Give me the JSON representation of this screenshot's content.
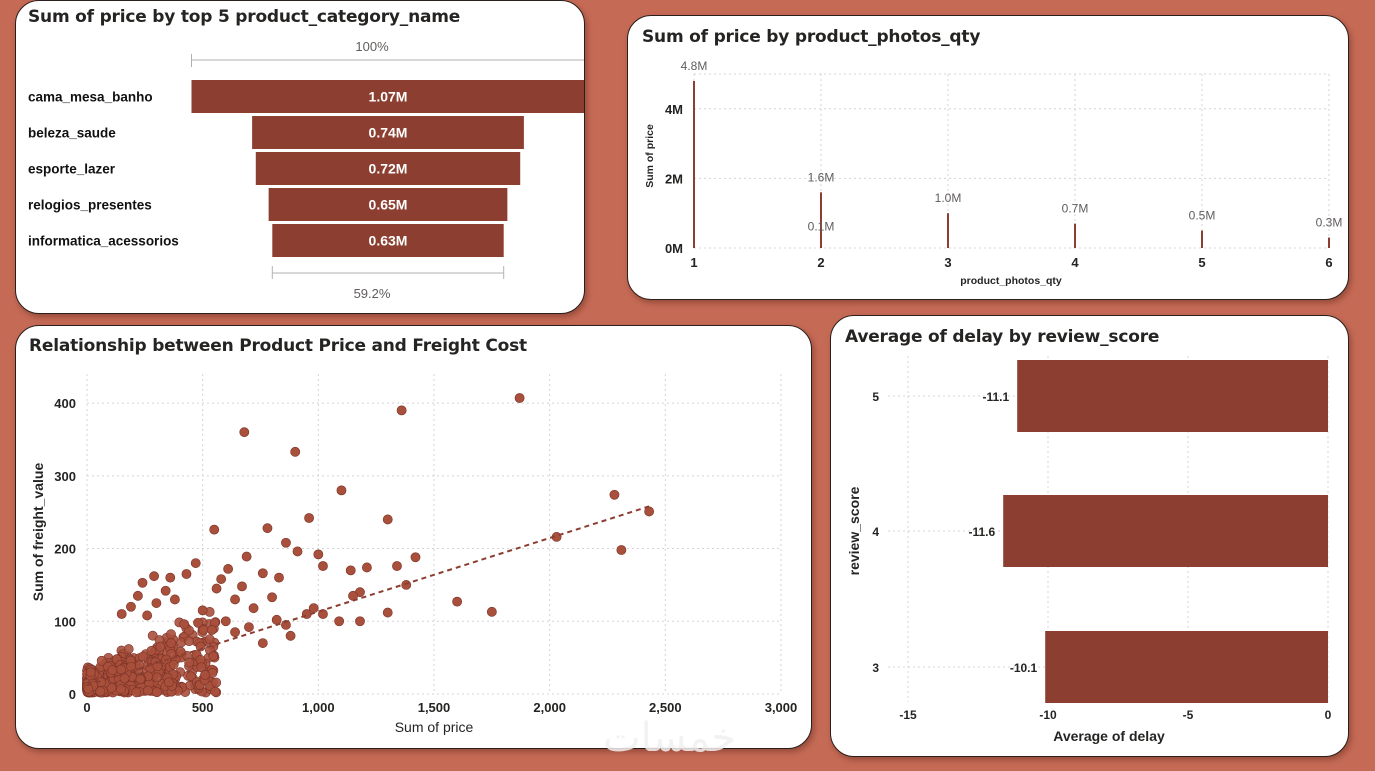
{
  "colors": {
    "bar": "#8c3e30",
    "grid": "#d4d4d4",
    "text": "#252423",
    "muted": "#605e5c"
  },
  "watermark": "خمسات",
  "chart_data": [
    {
      "id": "funnel",
      "type": "bar",
      "subtype": "funnel",
      "title": "Sum of price by top 5 product_category_name",
      "categories": [
        "cama_mesa_banho",
        "beleza_saude",
        "esporte_lazer",
        "relogios_presentes",
        "informatica_acessorios"
      ],
      "values": [
        1.07,
        0.74,
        0.72,
        0.65,
        0.63
      ],
      "value_labels": [
        "1.07M",
        "0.74M",
        "0.72M",
        "0.65M",
        "0.63M"
      ],
      "top_percent_label": "100%",
      "bottom_percent_label": "59.2%",
      "unit": "M"
    },
    {
      "id": "photos",
      "type": "bar",
      "subtype": "lollipop",
      "title": "Sum of price by product_photos_qty",
      "xlabel": "product_photos_qty",
      "ylabel": "Sum of price",
      "x": [
        1,
        2,
        2,
        3,
        4,
        5,
        6
      ],
      "x_ticks": [
        "1",
        "2",
        "3",
        "4",
        "5",
        "6"
      ],
      "values": [
        4.8,
        1.6,
        0.1,
        1.0,
        0.7,
        0.5,
        0.3
      ],
      "value_labels": [
        "4.8M",
        "1.6M",
        "0.1M",
        "1.0M",
        "0.7M",
        "0.5M",
        "0.3M"
      ],
      "y_ticks": [
        "0M",
        "2M",
        "4M"
      ],
      "ylim": [
        0,
        5
      ]
    },
    {
      "id": "scatter",
      "type": "scatter",
      "title": "Relationship between Product Price and Freight Cost",
      "xlabel": "Sum of price",
      "ylabel": "Sum of freight_value",
      "xlim": [
        0,
        3000
      ],
      "ylim": [
        0,
        440
      ],
      "x_ticks": [
        "0",
        "500",
        "1,000",
        "1,500",
        "2,000",
        "2,500",
        "3,000"
      ],
      "x_tick_values": [
        0,
        500,
        1000,
        1500,
        2000,
        2500,
        3000
      ],
      "y_ticks": [
        "0",
        "100",
        "200",
        "300",
        "400"
      ],
      "y_tick_values": [
        0,
        100,
        200,
        300,
        400
      ],
      "trendline": {
        "x": [
          0,
          2430
        ],
        "y": [
          12,
          258
        ]
      },
      "points": [
        [
          1870,
          407
        ],
        [
          1360,
          390
        ],
        [
          680,
          360
        ],
        [
          900,
          333
        ],
        [
          1100,
          280
        ],
        [
          2280,
          274
        ],
        [
          2430,
          251
        ],
        [
          1300,
          240
        ],
        [
          960,
          242
        ],
        [
          780,
          228
        ],
        [
          550,
          226
        ],
        [
          2030,
          216
        ],
        [
          2310,
          198
        ],
        [
          1420,
          188
        ],
        [
          860,
          208
        ],
        [
          1000,
          192
        ],
        [
          690,
          189
        ],
        [
          910,
          196
        ],
        [
          470,
          180
        ],
        [
          1020,
          176
        ],
        [
          1340,
          176
        ],
        [
          1210,
          174
        ],
        [
          610,
          172
        ],
        [
          760,
          166
        ],
        [
          1140,
          170
        ],
        [
          830,
          160
        ],
        [
          1600,
          127
        ],
        [
          1750,
          113
        ],
        [
          1380,
          150
        ],
        [
          1180,
          140
        ],
        [
          1300,
          112
        ],
        [
          1090,
          100
        ],
        [
          950,
          110
        ],
        [
          880,
          80
        ],
        [
          820,
          102
        ],
        [
          720,
          118
        ],
        [
          800,
          133
        ],
        [
          670,
          148
        ],
        [
          640,
          130
        ],
        [
          560,
          145
        ],
        [
          580,
          158
        ],
        [
          500,
          115
        ],
        [
          430,
          165
        ],
        [
          360,
          160
        ],
        [
          290,
          162
        ],
        [
          340,
          142
        ],
        [
          240,
          153
        ],
        [
          220,
          135
        ],
        [
          190,
          120
        ],
        [
          150,
          110
        ],
        [
          420,
          96
        ],
        [
          380,
          130
        ],
        [
          300,
          125
        ],
        [
          260,
          108
        ],
        [
          700,
          92
        ],
        [
          640,
          85
        ],
        [
          600,
          100
        ],
        [
          540,
          88
        ],
        [
          480,
          98
        ],
        [
          760,
          70
        ],
        [
          860,
          95
        ],
        [
          980,
          118
        ],
        [
          1180,
          100
        ],
        [
          1020,
          110
        ],
        [
          1150,
          135
        ]
      ]
    },
    {
      "id": "delay",
      "type": "bar",
      "subtype": "horizontal",
      "title": "Average of delay by review_score",
      "xlabel": "Average of delay",
      "ylabel": "review_score",
      "categories": [
        "5",
        "4",
        "3"
      ],
      "values": [
        -11.1,
        -11.6,
        -10.1
      ],
      "value_labels": [
        "-11.1",
        "-11.6",
        "-10.1"
      ],
      "xlim": [
        -15,
        0
      ],
      "x_ticks": [
        "-15",
        "-10",
        "-5",
        "0"
      ],
      "x_tick_values": [
        -15,
        -10,
        -5,
        0
      ]
    }
  ]
}
